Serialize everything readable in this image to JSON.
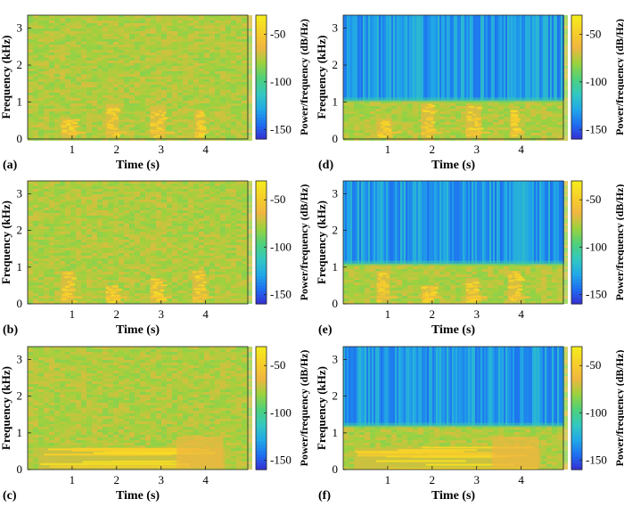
{
  "colormap": [
    "#3a28d0",
    "#1e6cf0",
    "#21a8e8",
    "#33c8c0",
    "#4ed17a",
    "#9bd23e",
    "#f0b640",
    "#f7cf2a",
    "#f4ea1d"
  ],
  "chart_data": [
    {
      "type": "heatmap",
      "panel_label": "(a)",
      "xlabel": "Time (s)",
      "ylabel": "Frequency (kHz)",
      "colorbar_label": "Power/frequency (dB/Hz)",
      "xlim": [
        0,
        4.95
      ],
      "ylim": [
        0,
        3.35
      ],
      "xticks": [
        "1",
        "2",
        "3",
        "4"
      ],
      "yticks": [
        "0",
        "1",
        "2",
        "3"
      ],
      "clim": [
        -160,
        -30
      ],
      "cticks": [
        "-50",
        "-100",
        "-150"
      ],
      "background_level_db": -75,
      "bursts": [
        {
          "t_start": 0.75,
          "t_end": 1.1,
          "f_max_khz": 0.55
        },
        {
          "t_start": 1.75,
          "t_end": 2.05,
          "f_max_khz": 0.95
        },
        {
          "t_start": 2.75,
          "t_end": 3.1,
          "f_max_khz": 0.9
        },
        {
          "t_start": 3.75,
          "t_end": 3.95,
          "f_max_khz": 0.8
        }
      ]
    },
    {
      "type": "heatmap",
      "panel_label": "(b)",
      "xlabel": "Time (s)",
      "ylabel": "Frequency (kHz)",
      "colorbar_label": "Power/frequency (dB/Hz)",
      "xlim": [
        0,
        4.95
      ],
      "ylim": [
        0,
        3.35
      ],
      "xticks": [
        "1",
        "2",
        "3",
        "4"
      ],
      "yticks": [
        "0",
        "1",
        "2",
        "3"
      ],
      "clim": [
        -160,
        -30
      ],
      "cticks": [
        "-50",
        "-100",
        "-150"
      ],
      "background_level_db": -75,
      "bursts": [
        {
          "t_start": 0.75,
          "t_end": 1.05,
          "f_max_khz": 0.9
        },
        {
          "t_start": 1.75,
          "t_end": 2.05,
          "f_max_khz": 0.5
        },
        {
          "t_start": 2.75,
          "t_end": 3.05,
          "f_max_khz": 0.7
        },
        {
          "t_start": 3.7,
          "t_end": 4.0,
          "f_max_khz": 0.9
        }
      ]
    },
    {
      "type": "heatmap",
      "panel_label": "(c)",
      "xlabel": "Time (s)",
      "ylabel": "Frequency (kHz)",
      "colorbar_label": "Power/frequency (dB/Hz)",
      "xlim": [
        0,
        4.95
      ],
      "ylim": [
        0,
        3.35
      ],
      "xticks": [
        "1",
        "2",
        "3",
        "4"
      ],
      "yticks": [
        "0",
        "1",
        "2",
        "3"
      ],
      "clim": [
        -160,
        -30
      ],
      "cticks": [
        "-50",
        "-100",
        "-150"
      ],
      "background_level_db": -75,
      "tonal_band": {
        "t_start": 0.25,
        "t_end": 4.45,
        "f_low_khz": 0.0,
        "f_high_khz": 0.75
      }
    },
    {
      "type": "heatmap",
      "panel_label": "(d)",
      "xlabel": "Time (s)",
      "ylabel": "Frequency (kHz)",
      "colorbar_label": "Power/frequency (dB/Hz)",
      "xlim": [
        0,
        4.95
      ],
      "ylim": [
        0,
        3.35
      ],
      "xticks": [
        "1",
        "2",
        "3",
        "4"
      ],
      "yticks": [
        "0",
        "1",
        "2",
        "3"
      ],
      "clim": [
        -160,
        -30
      ],
      "cticks": [
        "-50",
        "-100",
        "-150"
      ],
      "background_level_db": -75,
      "lowpass_cutoff_khz": 1.05,
      "stopband_level_db": -135,
      "bursts": [
        {
          "t_start": 0.75,
          "t_end": 1.1,
          "f_max_khz": 0.55
        },
        {
          "t_start": 1.75,
          "t_end": 2.05,
          "f_max_khz": 0.95
        },
        {
          "t_start": 2.75,
          "t_end": 3.1,
          "f_max_khz": 0.9
        },
        {
          "t_start": 3.75,
          "t_end": 3.95,
          "f_max_khz": 0.8
        }
      ]
    },
    {
      "type": "heatmap",
      "panel_label": "(e)",
      "xlabel": "Time (s)",
      "ylabel": "Frequency (kHz)",
      "colorbar_label": "Power/frequency (dB/Hz)",
      "xlim": [
        0,
        4.95
      ],
      "ylim": [
        0,
        3.35
      ],
      "xticks": [
        "1",
        "2",
        "3",
        "4"
      ],
      "yticks": [
        "0",
        "1",
        "2",
        "3"
      ],
      "clim": [
        -160,
        -30
      ],
      "cticks": [
        "-50",
        "-100",
        "-150"
      ],
      "background_level_db": -75,
      "lowpass_cutoff_khz": 1.1,
      "stopband_level_db": -135,
      "bursts": [
        {
          "t_start": 0.75,
          "t_end": 1.05,
          "f_max_khz": 0.9
        },
        {
          "t_start": 1.75,
          "t_end": 2.05,
          "f_max_khz": 0.5
        },
        {
          "t_start": 2.75,
          "t_end": 3.05,
          "f_max_khz": 0.7
        },
        {
          "t_start": 3.7,
          "t_end": 4.0,
          "f_max_khz": 0.9
        }
      ]
    },
    {
      "type": "heatmap",
      "panel_label": "(f)",
      "xlabel": "Time (s)",
      "ylabel": "Frequency (kHz)",
      "colorbar_label": "Power/frequency (dB/Hz)",
      "xlim": [
        0,
        4.95
      ],
      "ylim": [
        0,
        3.35
      ],
      "xticks": [
        "1",
        "2",
        "3",
        "4"
      ],
      "yticks": [
        "0",
        "1",
        "2",
        "3"
      ],
      "clim": [
        -160,
        -30
      ],
      "cticks": [
        "-50",
        "-100",
        "-150"
      ],
      "background_level_db": -75,
      "lowpass_cutoff_khz": 1.2,
      "stopband_level_db": -135,
      "tonal_band": {
        "t_start": 0.25,
        "t_end": 4.45,
        "f_low_khz": 0.0,
        "f_high_khz": 0.75
      }
    }
  ]
}
